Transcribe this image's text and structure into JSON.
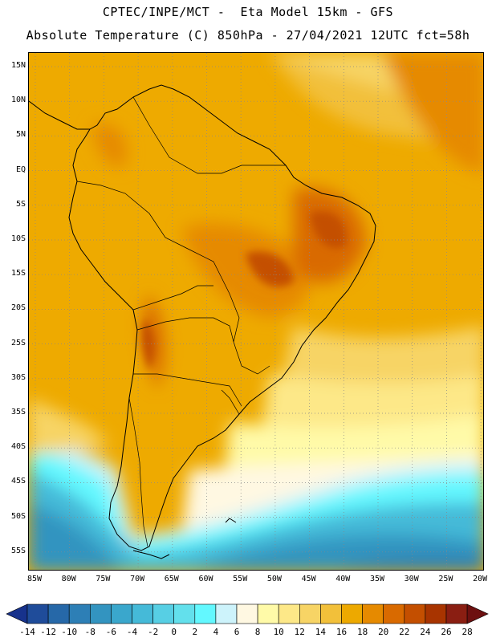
{
  "header": {
    "line1": "CPTEC/INPE/MCT -  Eta Model 15km - GFS",
    "line2": "Absolute Temperature (C) 850hPa - 27/04/2021 12UTC fct=58h"
  },
  "map": {
    "lat_ticks": [
      "15N",
      "10N",
      "5N",
      "EQ",
      "5S",
      "10S",
      "15S",
      "20S",
      "25S",
      "30S",
      "35S",
      "40S",
      "45S",
      "50S",
      "55S"
    ],
    "lon_ticks": [
      "85W",
      "80W",
      "75W",
      "70W",
      "65W",
      "60W",
      "55W",
      "50W",
      "45W",
      "40W",
      "35W",
      "30W",
      "25W",
      "20W"
    ],
    "domain": {
      "lon_min": -86,
      "lon_max": -20,
      "lat_min": -57.5,
      "lat_max": 17.5
    }
  },
  "colorbar": {
    "labels": [
      "-14",
      "-12",
      "-10",
      "-8",
      "-6",
      "-4",
      "-2",
      "0",
      "2",
      "4",
      "6",
      "8",
      "10",
      "12",
      "14",
      "16",
      "18",
      "20",
      "22",
      "24",
      "26",
      "28"
    ],
    "colors": [
      "#17328c",
      "#1f4c9a",
      "#2668a8",
      "#2d7fb6",
      "#3394c0",
      "#3aa7cc",
      "#45bad8",
      "#57cfe4",
      "#63e0ec",
      "#63f8ff",
      "#cdf3fb",
      "#fff8e2",
      "#fffaa8",
      "#fde888",
      "#f7d465",
      "#f2c03a",
      "#eda900",
      "#e68a00",
      "#d96a00",
      "#c44f00",
      "#a83400",
      "#8a1e12",
      "#6d1010"
    ]
  }
}
